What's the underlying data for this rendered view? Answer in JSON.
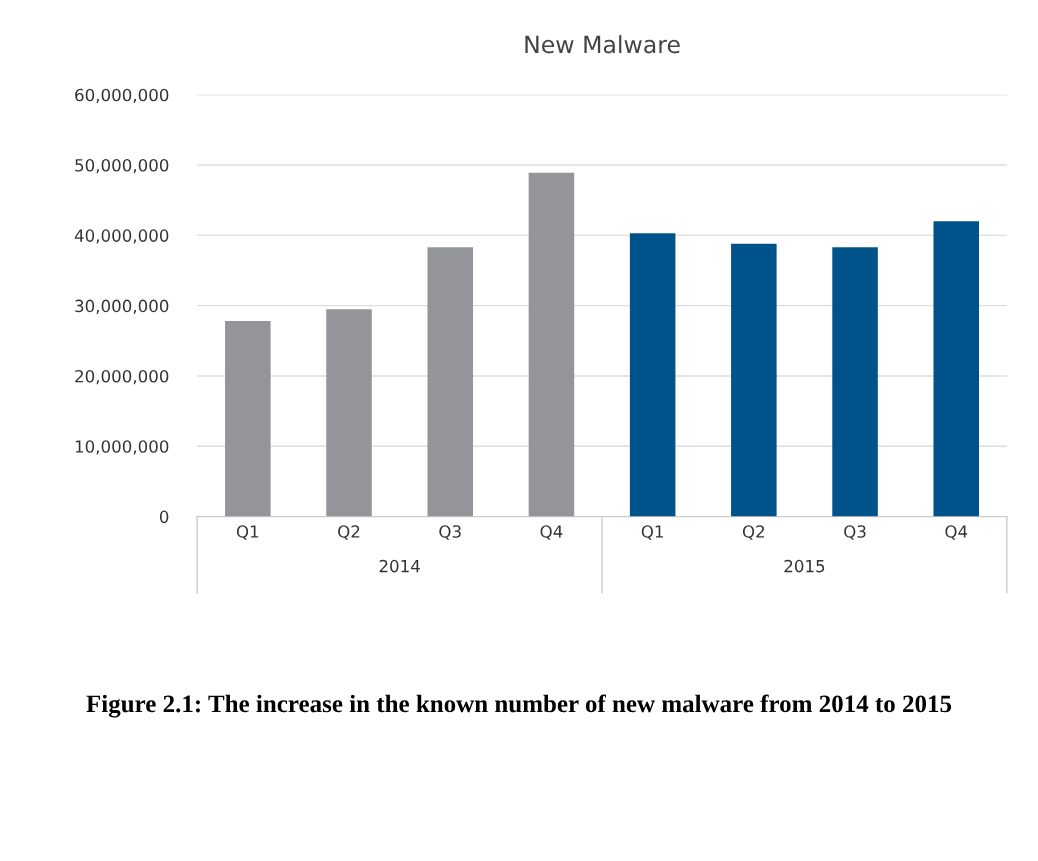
{
  "chart_data": {
    "type": "bar",
    "title": "New Malware",
    "categories": [
      "Q1",
      "Q2",
      "Q3",
      "Q4",
      "Q1",
      "Q2",
      "Q3",
      "Q4"
    ],
    "values": [
      27800000,
      29500000,
      38300000,
      48900000,
      40300000,
      38800000,
      38300000,
      42000000
    ],
    "colors": [
      "#939598",
      "#939598",
      "#939598",
      "#939598",
      "#00538a",
      "#00538a",
      "#00538a",
      "#00538a"
    ],
    "ylim": [
      0,
      60000000
    ],
    "yticks": [
      {
        "value": 0,
        "label": "0"
      },
      {
        "value": 10000000,
        "label": "10,000,000"
      },
      {
        "value": 20000000,
        "label": "20,000,000"
      },
      {
        "value": 30000000,
        "label": "30,000,000"
      },
      {
        "value": 40000000,
        "label": "40,000,000"
      },
      {
        "value": 50000000,
        "label": "50,000,000"
      },
      {
        "value": 60000000,
        "label": "60,000,000"
      }
    ],
    "grid": "y",
    "annotations": [
      "2014",
      "2015",
      "Figure 2.1: The increase in the known number of new malware from 2014 to 2015"
    ]
  }
}
